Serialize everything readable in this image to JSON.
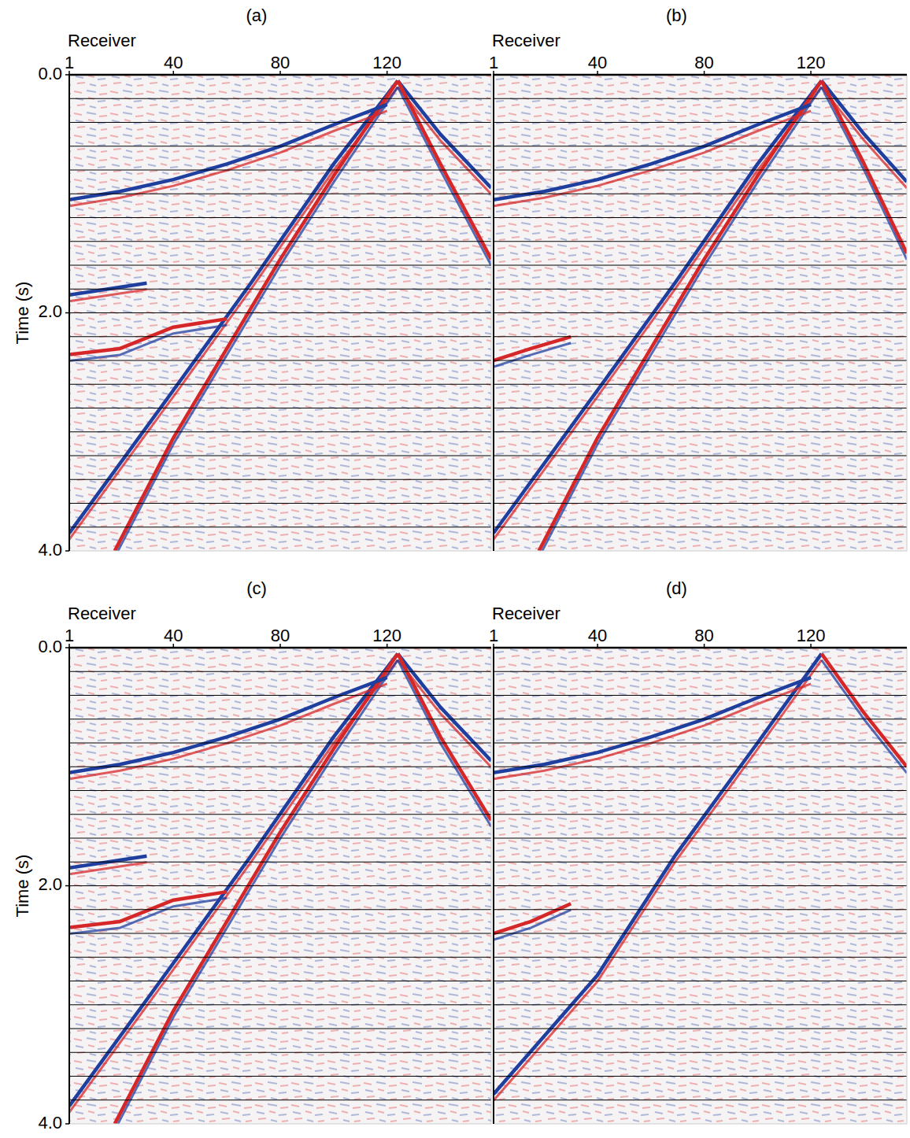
{
  "chart_data": [
    {
      "type": "seismic",
      "title": "(a)",
      "x_label": "Receiver",
      "y_label": "Time (s)",
      "tick_labels": true,
      "xlim": [
        1,
        159
      ],
      "xticks": [
        1,
        40,
        80,
        120
      ],
      "ylim": [
        0,
        4
      ],
      "yticks": [
        {
          "value": 0,
          "label": "0.0"
        },
        {
          "value": 2,
          "label": "2.0"
        },
        {
          "value": 4,
          "label": "4.0"
        }
      ],
      "hlines": [
        0.2,
        0.4,
        0.6,
        0.8,
        1.0,
        1.2,
        1.4,
        1.6,
        1.8,
        2.0,
        2.2,
        2.4,
        2.6,
        2.8,
        3.0,
        3.2,
        3.4,
        3.6,
        3.8
      ],
      "events": [
        {
          "color": "#1f3f9f",
          "x": [
            124,
            100,
            69,
            40,
            1
          ],
          "y": [
            0.05,
            0.75,
            1.75,
            2.65,
            3.85
          ]
        },
        {
          "color": "#d62728",
          "x": [
            124,
            100,
            80,
            60,
            40,
            18
          ],
          "y": [
            0.05,
            0.85,
            1.55,
            2.3,
            3.05,
            4.0
          ]
        },
        {
          "color": "#1f3f9f",
          "x": [
            124,
            140,
            159
          ],
          "y": [
            0.05,
            0.5,
            0.95
          ]
        },
        {
          "color": "#d62728",
          "x": [
            124,
            140,
            159
          ],
          "y": [
            0.05,
            0.75,
            1.55
          ]
        },
        {
          "color": "#1f3f9f",
          "x": [
            120,
            100,
            80,
            60,
            40,
            20,
            1
          ],
          "y": [
            0.25,
            0.42,
            0.6,
            0.75,
            0.88,
            0.98,
            1.05
          ]
        },
        {
          "color": "#d62728",
          "x": [
            1,
            20,
            40,
            60
          ],
          "y": [
            2.35,
            2.3,
            2.12,
            2.05
          ]
        },
        {
          "color": "#1f3f9f",
          "x": [
            1,
            30
          ],
          "y": [
            1.85,
            1.75
          ]
        }
      ]
    },
    {
      "type": "seismic",
      "title": "(b)",
      "x_label": "Receiver",
      "tick_labels": "x",
      "xlim": [
        1,
        156
      ],
      "xticks": [
        1,
        40,
        80,
        120
      ],
      "ylim": [
        0,
        4
      ],
      "hlines": [
        0.2,
        0.4,
        0.6,
        0.8,
        1.0,
        1.2,
        1.4,
        1.6,
        1.8,
        2.0,
        2.2,
        2.4,
        2.6,
        2.8,
        3.0,
        3.2,
        3.4,
        3.6,
        3.8
      ],
      "events": [
        {
          "color": "#1f3f9f",
          "x": [
            124,
            100,
            69,
            40,
            1
          ],
          "y": [
            0.05,
            0.75,
            1.75,
            2.65,
            3.85
          ]
        },
        {
          "color": "#d62728",
          "x": [
            124,
            100,
            80,
            60,
            40,
            18
          ],
          "y": [
            0.05,
            0.85,
            1.55,
            2.3,
            3.05,
            4.0
          ]
        },
        {
          "color": "#1f3f9f",
          "x": [
            124,
            140,
            156
          ],
          "y": [
            0.05,
            0.5,
            0.9
          ]
        },
        {
          "color": "#d62728",
          "x": [
            124,
            140,
            156
          ],
          "y": [
            0.05,
            0.75,
            1.5
          ]
        },
        {
          "color": "#1f3f9f",
          "x": [
            120,
            100,
            80,
            60,
            40,
            20,
            1
          ],
          "y": [
            0.25,
            0.42,
            0.6,
            0.75,
            0.88,
            0.98,
            1.05
          ]
        },
        {
          "color": "#d62728",
          "x": [
            1,
            15,
            30
          ],
          "y": [
            2.4,
            2.3,
            2.2
          ]
        }
      ]
    },
    {
      "type": "seismic",
      "title": "(c)",
      "x_label": "Receiver",
      "y_label": "Time (s)",
      "tick_labels": true,
      "xlim": [
        1,
        159
      ],
      "xticks": [
        1,
        40,
        80,
        120
      ],
      "ylim": [
        0,
        4
      ],
      "yticks": [
        {
          "value": 0,
          "label": "0.0"
        },
        {
          "value": 2,
          "label": "2.0"
        },
        {
          "value": 4,
          "label": "4.0"
        }
      ],
      "hlines": [
        0.2,
        0.4,
        0.6,
        0.8,
        1.0,
        1.2,
        1.4,
        1.6,
        1.8,
        2.0,
        2.2,
        2.4,
        2.6,
        2.8,
        3.0,
        3.2,
        3.4,
        3.6,
        3.8
      ],
      "events": [
        {
          "color": "#1f3f9f",
          "x": [
            124,
            100,
            69,
            40,
            1
          ],
          "y": [
            0.05,
            0.75,
            1.75,
            2.65,
            3.85
          ]
        },
        {
          "color": "#d62728",
          "x": [
            124,
            100,
            80,
            60,
            40,
            18
          ],
          "y": [
            0.05,
            0.85,
            1.55,
            2.3,
            3.05,
            4.0
          ]
        },
        {
          "color": "#1f3f9f",
          "x": [
            124,
            140,
            159
          ],
          "y": [
            0.05,
            0.5,
            0.95
          ]
        },
        {
          "color": "#d62728",
          "x": [
            124,
            140,
            159
          ],
          "y": [
            0.05,
            0.75,
            1.45
          ]
        },
        {
          "color": "#1f3f9f",
          "x": [
            120,
            100,
            80,
            60,
            40,
            20,
            1
          ],
          "y": [
            0.25,
            0.42,
            0.6,
            0.75,
            0.88,
            0.98,
            1.05
          ]
        },
        {
          "color": "#d62728",
          "x": [
            1,
            20,
            40,
            60
          ],
          "y": [
            2.35,
            2.3,
            2.12,
            2.05
          ]
        },
        {
          "color": "#1f3f9f",
          "x": [
            1,
            30
          ],
          "y": [
            1.85,
            1.75
          ]
        }
      ]
    },
    {
      "type": "seismic",
      "title": "(d)",
      "x_label": "Receiver",
      "tick_labels": "x",
      "xlim": [
        1,
        156
      ],
      "xticks": [
        1,
        40,
        80,
        120
      ],
      "ylim": [
        0,
        4
      ],
      "hlines": [
        0.2,
        0.4,
        0.6,
        0.8,
        1.0,
        1.2,
        1.4,
        1.6,
        1.8,
        2.0,
        2.2,
        2.4,
        2.6,
        2.8,
        3.0,
        3.2,
        3.4,
        3.6,
        3.8
      ],
      "events": [
        {
          "color": "#1f3f9f",
          "x": [
            124,
            100,
            69,
            40,
            1
          ],
          "y": [
            0.05,
            0.8,
            1.75,
            2.75,
            3.75
          ]
        },
        {
          "color": "#d62728",
          "x": [
            124,
            140,
            156
          ],
          "y": [
            0.05,
            0.55,
            1.0
          ]
        },
        {
          "color": "#1f3f9f",
          "x": [
            120,
            100,
            80,
            60,
            40,
            20,
            1
          ],
          "y": [
            0.25,
            0.42,
            0.6,
            0.75,
            0.88,
            0.98,
            1.05
          ]
        },
        {
          "color": "#d62728",
          "x": [
            1,
            15,
            30
          ],
          "y": [
            2.4,
            2.3,
            2.15
          ]
        }
      ]
    }
  ]
}
